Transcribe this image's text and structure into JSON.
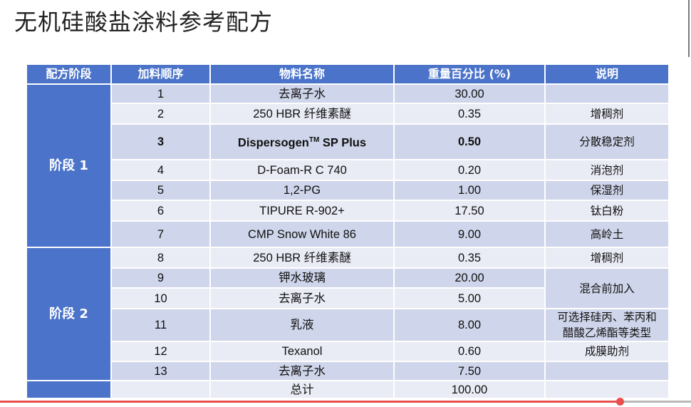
{
  "title": "无机硅酸盐涂料参考配方",
  "headers": [
    "配方阶段",
    "加料顺序",
    "物料名称",
    "重量百分比 (%)",
    "说明"
  ],
  "stage1": "阶段 1",
  "stage2": "阶段 2",
  "rows": [
    {
      "order": "1",
      "material": "去离子水",
      "weight": "30.00",
      "note": ""
    },
    {
      "order": "2",
      "material": "250 HBR 纤维素醚",
      "weight": "0.35",
      "note": "增稠剂"
    },
    {
      "order": "3",
      "material_main": "Dispersogen",
      "material_sup": "TM",
      "material_tail": " SP Plus",
      "weight": "0.50",
      "note": "分散稳定剂"
    },
    {
      "order": "4",
      "material": "D-Foam-R C 740",
      "weight": "0.20",
      "note": "消泡剂"
    },
    {
      "order": "5",
      "material": "1,2-PG",
      "weight": "1.00",
      "note": "保湿剂"
    },
    {
      "order": "6",
      "material": "TIPURE R-902+",
      "weight": "17.50",
      "note": "钛白粉"
    },
    {
      "order": "7",
      "material": "CMP Snow White 86",
      "weight": "9.00",
      "note": "高岭土"
    },
    {
      "order": "8",
      "material": "250 HBR 纤维素醚",
      "weight": "0.35",
      "note": "增稠剂"
    },
    {
      "order": "9",
      "material": "钾水玻璃",
      "weight": "20.00",
      "note": "混合前加入"
    },
    {
      "order": "10",
      "material": "去离子水",
      "weight": "5.00"
    },
    {
      "order": "11",
      "material": "乳液",
      "weight": "8.00",
      "note_line1": "可选择硅丙、苯丙和",
      "note_line2": "醋酸乙烯酯等类型"
    },
    {
      "order": "12",
      "material": "Texanol",
      "weight": "0.60",
      "note": "成膜助剂"
    },
    {
      "order": "13",
      "material": "去离子水",
      "weight": "7.50",
      "note": ""
    }
  ],
  "total": {
    "label": "总计",
    "weight": "100.00"
  },
  "video": {
    "progress_fraction": 0.897
  },
  "colors": {
    "header": "#4a73c9",
    "row_dark": "#cfd5ea",
    "row_light": "#e9ebf5",
    "progress": "#ea4d4d"
  }
}
